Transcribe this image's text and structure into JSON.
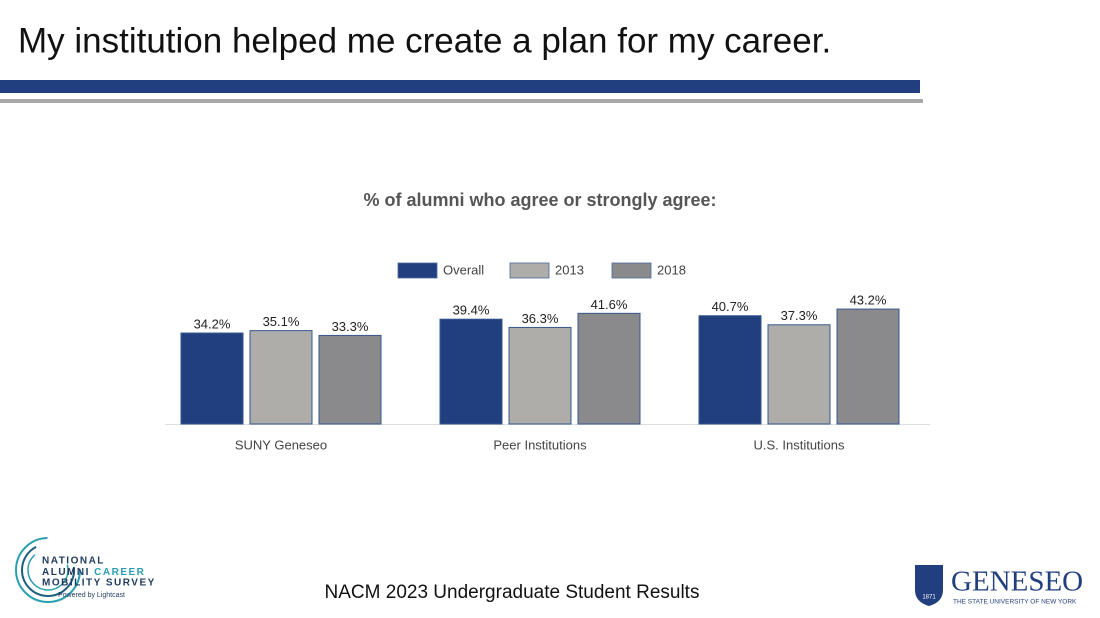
{
  "slide": {
    "heading": "My institution helped me create a plan for my career.",
    "footer": "NACM 2023 Undergraduate Student Results",
    "left_logo": {
      "line1": "NATIONAL",
      "line2a": "ALUMNI",
      "line2b": "CAREER",
      "line3": "MOBILITY SURVEY",
      "powered": "Powered by Lightcast"
    },
    "right_logo": {
      "name": "GENESEO",
      "tagline": "THE STATE UNIVERSITY OF NEW YORK",
      "year": "1871"
    }
  },
  "chart_data": {
    "type": "bar",
    "title": "% of alumni who agree or strongly agree:",
    "categories": [
      "SUNY Geneseo",
      "Peer Institutions",
      "U.S. Institutions"
    ],
    "series": [
      {
        "name": "Overall",
        "color": "#213f7e",
        "values": [
          34.2,
          39.4,
          40.7
        ],
        "value_labels": [
          "34.2%",
          "39.4%",
          "40.7%"
        ]
      },
      {
        "name": "2013",
        "color": "#aeadaa",
        "values": [
          35.1,
          36.3,
          37.3
        ],
        "value_labels": [
          "35.1%",
          "36.3%",
          "37.3%"
        ]
      },
      {
        "name": "2018",
        "color": "#8a8a8c",
        "values": [
          33.3,
          41.6,
          43.2
        ],
        "value_labels": [
          "33.3%",
          "41.6%",
          "43.2%"
        ]
      }
    ],
    "legend": "top"
  }
}
